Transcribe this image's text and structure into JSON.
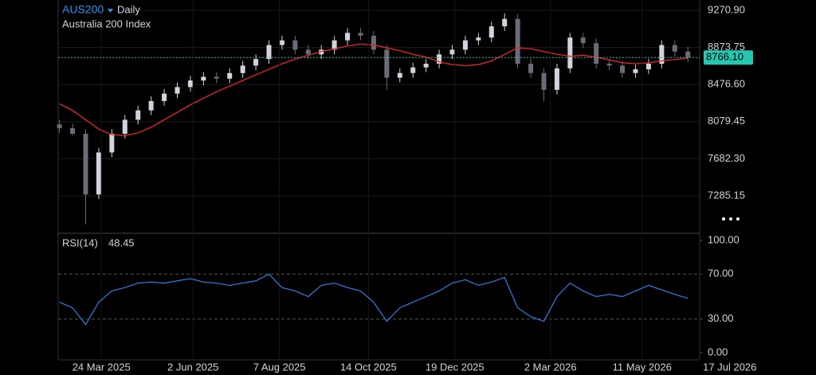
{
  "header": {
    "symbol": "AUS200",
    "interval": "Daily",
    "description": "Australia 200 Index"
  },
  "chart_data": [
    {
      "type": "candlestick",
      "x": [
        "2025-02-20",
        "2025-03-02",
        "2025-03-12",
        "2025-03-22",
        "2025-04-01",
        "2025-04-11",
        "2025-04-21",
        "2025-05-01",
        "2025-05-11",
        "2025-05-21",
        "2025-05-31",
        "2025-06-10",
        "2025-06-20",
        "2025-06-30",
        "2025-07-10",
        "2025-07-20",
        "2025-07-30",
        "2025-08-09",
        "2025-08-19",
        "2025-08-29",
        "2025-09-08",
        "2025-09-18",
        "2025-09-28",
        "2025-10-08",
        "2025-10-18",
        "2025-10-28",
        "2025-11-07",
        "2025-11-17",
        "2025-11-27",
        "2025-12-07",
        "2025-12-17",
        "2025-12-27",
        "2026-01-06",
        "2026-01-16",
        "2026-01-26",
        "2026-02-05",
        "2026-02-15",
        "2026-02-25",
        "2026-03-07",
        "2026-03-17",
        "2026-03-27",
        "2026-04-06",
        "2026-04-16",
        "2026-04-26",
        "2026-05-06",
        "2026-05-16",
        "2026-05-26",
        "2026-06-05",
        "2026-06-15"
      ],
      "open": [
        8050,
        8010,
        7950,
        7300,
        7750,
        7950,
        8100,
        8200,
        8300,
        8380,
        8450,
        8520,
        8560,
        8540,
        8600,
        8680,
        8750,
        8900,
        8950,
        8850,
        8800,
        8850,
        8950,
        9030,
        9000,
        8850,
        8550,
        8600,
        8660,
        8700,
        8800,
        8850,
        8950,
        8980,
        9100,
        9180,
        8700,
        8600,
        8420,
        8650,
        8980,
        8920,
        8700,
        8680,
        8600,
        8640,
        8700,
        8900,
        8830
      ],
      "high": [
        8100,
        8060,
        8000,
        7800,
        8000,
        8150,
        8250,
        8350,
        8430,
        8500,
        8570,
        8610,
        8610,
        8650,
        8730,
        8800,
        8950,
        9000,
        9000,
        8900,
        8900,
        9000,
        9080,
        9080,
        9050,
        8900,
        8650,
        8710,
        8750,
        8850,
        8900,
        9000,
        9030,
        9150,
        9240,
        9230,
        8750,
        8650,
        8700,
        9030,
        9030,
        8970,
        8750,
        8730,
        8690,
        8750,
        8950,
        8950,
        8880
      ],
      "low": [
        7960,
        7930,
        6980,
        7250,
        7700,
        7900,
        8050,
        8150,
        8250,
        8330,
        8400,
        8470,
        8490,
        8490,
        8550,
        8630,
        8700,
        8850,
        8800,
        8750,
        8750,
        8800,
        8900,
        8950,
        8800,
        8420,
        8500,
        8550,
        8610,
        8650,
        8750,
        8800,
        8900,
        8930,
        9050,
        8650,
        8550,
        8300,
        8370,
        8600,
        8870,
        8650,
        8630,
        8550,
        8550,
        8590,
        8650,
        8780,
        8716.1
      ],
      "close": [
        8010,
        7950,
        7300,
        7750,
        7950,
        8100,
        8200,
        8300,
        8380,
        8450,
        8520,
        8560,
        8540,
        8600,
        8680,
        8750,
        8900,
        8950,
        8850,
        8800,
        8850,
        8950,
        9030,
        9000,
        8850,
        8550,
        8600,
        8660,
        8700,
        8800,
        8850,
        8950,
        8980,
        9100,
        9180,
        8700,
        8600,
        8420,
        8650,
        8980,
        8920,
        8700,
        8680,
        8600,
        8640,
        8700,
        8900,
        8830,
        8766.1
      ],
      "up_color": "#d1d4dc",
      "down_color": "#6a6d78",
      "ma": {
        "color": "#e8262d",
        "values": [
          8270,
          8200,
          8100,
          8000,
          7940,
          7930,
          7960,
          8020,
          8100,
          8180,
          8260,
          8330,
          8400,
          8460,
          8520,
          8580,
          8640,
          8700,
          8750,
          8790,
          8830,
          8860,
          8890,
          8910,
          8900,
          8870,
          8840,
          8800,
          8770,
          8720,
          8690,
          8680,
          8690,
          8730,
          8800,
          8870,
          8860,
          8830,
          8800,
          8780,
          8790,
          8770,
          8740,
          8710,
          8700,
          8710,
          8730,
          8745,
          8760
        ]
      },
      "last_price": {
        "value": 8766.1,
        "label": "8766.10",
        "color": "#26c6b0"
      },
      "xlim": [
        "2025-02-19",
        "2026-06-24"
      ],
      "ylim": [
        6893,
        9382
      ],
      "yticks": [
        {
          "value": 9270.9,
          "label": "9270.90"
        },
        {
          "value": 8873.75,
          "label": "8873.75"
        },
        {
          "value": 8476.6,
          "label": "8476.60"
        },
        {
          "value": 8079.45,
          "label": "8079.45"
        },
        {
          "value": 7682.3,
          "label": "7682.30"
        },
        {
          "value": 7285.15,
          "label": "7285.15"
        }
      ],
      "grid": true
    },
    {
      "type": "line",
      "title": "RSI(14)",
      "last": 48.45,
      "color": "#2f7fe6",
      "x": [
        "2025-02-20",
        "2025-03-02",
        "2025-03-12",
        "2025-03-22",
        "2025-04-01",
        "2025-04-11",
        "2025-04-21",
        "2025-05-01",
        "2025-05-11",
        "2025-05-21",
        "2025-05-31",
        "2025-06-10",
        "2025-06-20",
        "2025-06-30",
        "2025-07-10",
        "2025-07-20",
        "2025-07-30",
        "2025-08-09",
        "2025-08-19",
        "2025-08-29",
        "2025-09-08",
        "2025-09-18",
        "2025-09-28",
        "2025-10-08",
        "2025-10-18",
        "2025-10-28",
        "2025-11-07",
        "2025-11-17",
        "2025-11-27",
        "2025-12-07",
        "2025-12-17",
        "2025-12-27",
        "2026-01-06",
        "2026-01-16",
        "2026-01-26",
        "2026-02-05",
        "2026-02-15",
        "2026-02-25",
        "2026-03-07",
        "2026-03-17",
        "2026-03-27",
        "2026-04-06",
        "2026-04-16",
        "2026-04-26",
        "2026-05-06",
        "2026-05-16",
        "2026-05-26",
        "2026-06-05",
        "2026-06-15"
      ],
      "values": [
        45,
        40,
        25,
        45,
        55,
        58,
        62,
        63,
        62,
        64,
        66,
        63,
        62,
        60,
        62,
        64,
        70,
        58,
        55,
        50,
        60,
        62,
        58,
        55,
        45,
        28,
        40,
        45,
        50,
        55,
        62,
        65,
        60,
        63,
        67,
        40,
        32,
        28,
        50,
        62,
        55,
        50,
        52,
        50,
        55,
        60,
        56,
        52,
        48.45
      ],
      "xlim": [
        "2025-02-19",
        "2026-06-24"
      ],
      "ylim": [
        -6.4,
        106.4
      ],
      "yticks": [
        {
          "value": 100,
          "label": "100.00"
        },
        {
          "value": 70,
          "label": "70.00"
        },
        {
          "value": 30,
          "label": "30.00"
        },
        {
          "value": 0,
          "label": "0.00"
        }
      ],
      "dashed_levels": [
        70,
        30
      ],
      "xticks": [
        {
          "value": "2025-03-24",
          "label": "24 Mar 2025"
        },
        {
          "value": "2025-06-02",
          "label": "2 Jun 2025"
        },
        {
          "value": "2025-08-07",
          "label": "7 Aug 2025"
        },
        {
          "value": "2025-10-14",
          "label": "14 Oct 2025"
        },
        {
          "value": "2025-12-19",
          "label": "19 Dec 2025"
        },
        {
          "value": "2026-03-02",
          "label": "2 Mar 2026"
        },
        {
          "value": "2026-05-11",
          "label": "11 May 2026"
        },
        {
          "value": "2026-07-17",
          "label": "17 Jul 2026"
        }
      ]
    }
  ]
}
